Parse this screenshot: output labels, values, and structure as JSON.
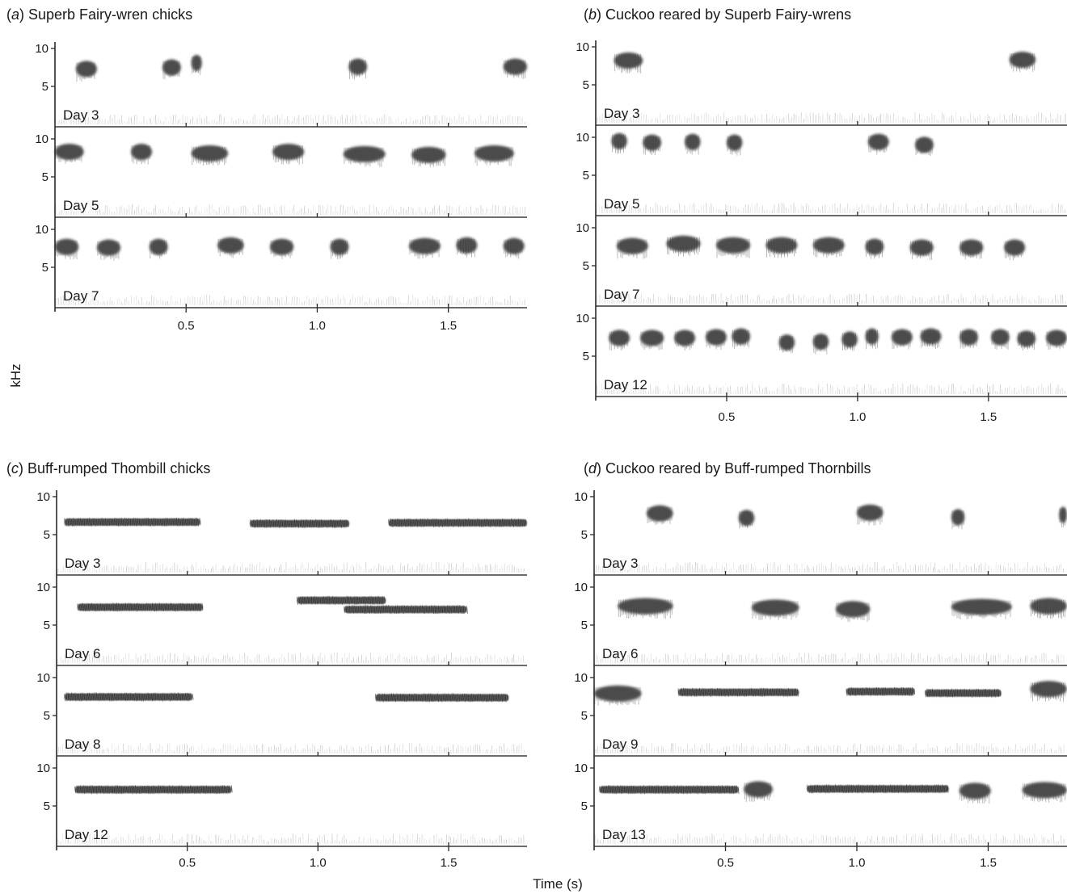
{
  "chart_data": {
    "type": "spectrogram",
    "y_axis_label": "kHz",
    "x_axis_label": "Time (s)",
    "x_ticks": [
      "0.5",
      "1.0",
      "1.5"
    ],
    "y_ticks": [
      "5",
      "10"
    ],
    "panels": [
      {
        "letter": "a",
        "title": "Superb Fairy-wren chicks",
        "xlim": [
          0,
          1.8
        ],
        "rows": [
          {
            "day": "Day 3",
            "calls": [
              [
                0.08,
                0.16,
                7.3
              ],
              [
                0.41,
                0.48,
                7.5
              ],
              [
                0.52,
                0.56,
                8.1
              ],
              [
                1.12,
                1.19,
                7.6
              ],
              [
                1.71,
                1.8,
                7.6
              ]
            ]
          },
          {
            "day": "Day 5",
            "calls": [
              [
                0.0,
                0.11,
                8.3
              ],
              [
                0.29,
                0.37,
                8.3
              ],
              [
                0.52,
                0.66,
                8.1
              ],
              [
                0.83,
                0.95,
                8.3
              ],
              [
                1.1,
                1.26,
                8.0
              ],
              [
                1.36,
                1.49,
                7.9
              ],
              [
                1.6,
                1.75,
                8.1
              ]
            ]
          },
          {
            "day": "Day 7",
            "calls": [
              [
                0.0,
                0.09,
                7.7
              ],
              [
                0.16,
                0.25,
                7.6
              ],
              [
                0.36,
                0.43,
                7.7
              ],
              [
                0.62,
                0.72,
                7.9
              ],
              [
                0.82,
                0.91,
                7.7
              ],
              [
                1.05,
                1.12,
                7.7
              ],
              [
                1.35,
                1.47,
                7.8
              ],
              [
                1.53,
                1.61,
                7.9
              ],
              [
                1.71,
                1.79,
                7.8
              ]
            ]
          }
        ]
      },
      {
        "letter": "b",
        "title": "Cuckoo reared by Superb Fairy-wrens",
        "xlim": [
          0,
          1.8
        ],
        "rows": [
          {
            "day": "Day 3",
            "calls": [
              [
                0.07,
                0.18,
                8.2
              ],
              [
                1.58,
                1.68,
                8.3
              ]
            ]
          },
          {
            "day": "Day 5",
            "calls": [
              [
                0.06,
                0.12,
                9.5
              ],
              [
                0.18,
                0.25,
                9.3
              ],
              [
                0.34,
                0.4,
                9.4
              ],
              [
                0.5,
                0.56,
                9.3
              ],
              [
                1.04,
                1.12,
                9.4
              ],
              [
                1.22,
                1.29,
                9.0
              ]
            ]
          },
          {
            "day": "Day 7",
            "calls": [
              [
                0.08,
                0.2,
                7.6
              ],
              [
                0.27,
                0.4,
                7.9
              ],
              [
                0.46,
                0.59,
                7.7
              ],
              [
                0.65,
                0.77,
                7.7
              ],
              [
                0.83,
                0.95,
                7.7
              ],
              [
                1.03,
                1.1,
                7.5
              ],
              [
                1.2,
                1.29,
                7.4
              ],
              [
                1.39,
                1.48,
                7.4
              ],
              [
                1.56,
                1.64,
                7.4
              ]
            ]
          },
          {
            "day": "Day 12",
            "calls": [
              [
                0.05,
                0.13,
                7.4
              ],
              [
                0.17,
                0.26,
                7.4
              ],
              [
                0.3,
                0.38,
                7.4
              ],
              [
                0.42,
                0.5,
                7.5
              ],
              [
                0.52,
                0.59,
                7.6
              ],
              [
                0.7,
                0.76,
                6.8
              ],
              [
                0.83,
                0.89,
                6.9
              ],
              [
                0.94,
                1.0,
                7.2
              ],
              [
                1.03,
                1.08,
                7.6
              ],
              [
                1.13,
                1.21,
                7.5
              ],
              [
                1.24,
                1.32,
                7.6
              ],
              [
                1.39,
                1.46,
                7.5
              ],
              [
                1.51,
                1.58,
                7.5
              ],
              [
                1.61,
                1.68,
                7.3
              ],
              [
                1.72,
                1.8,
                7.4
              ]
            ]
          }
        ]
      },
      {
        "letter": "c",
        "title": "Buff-rumped Thombill chicks",
        "xlim": [
          0,
          1.8
        ],
        "rows": [
          {
            "day": "Day 3",
            "calls": [
              [
                0.03,
                0.55,
                6.6
              ],
              [
                0.74,
                1.12,
                6.4
              ],
              [
                1.27,
                1.8,
                6.5
              ]
            ]
          },
          {
            "day": "Day 6",
            "calls": [
              [
                0.08,
                0.56,
                7.3
              ],
              [
                0.92,
                1.26,
                8.2
              ],
              [
                1.1,
                1.57,
                7.0
              ]
            ]
          },
          {
            "day": "Day 8",
            "calls": [
              [
                0.03,
                0.52,
                7.4
              ],
              [
                1.22,
                1.73,
                7.3
              ]
            ]
          },
          {
            "day": "Day 12",
            "calls": [
              [
                0.07,
                0.67,
                7.1
              ]
            ]
          }
        ]
      },
      {
        "letter": "d",
        "title": "Cuckoo reared by Buff-rumped Thornbills",
        "xlim": [
          0,
          1.8
        ],
        "rows": [
          {
            "day": "Day 3",
            "calls": [
              [
                0.2,
                0.3,
                7.8
              ],
              [
                0.55,
                0.61,
                7.2
              ],
              [
                1.0,
                1.1,
                7.9
              ],
              [
                1.36,
                1.41,
                7.3
              ],
              [
                1.77,
                1.8,
                7.6
              ]
            ]
          },
          {
            "day": "Day 6",
            "calls": [
              [
                0.09,
                0.3,
                7.5
              ],
              [
                0.6,
                0.78,
                7.3
              ],
              [
                0.92,
                1.05,
                7.1
              ],
              [
                1.36,
                1.59,
                7.4
              ],
              [
                1.66,
                1.8,
                7.5
              ]
            ]
          },
          {
            "day": "Day 9",
            "calls": [
              [
                0.0,
                0.18,
                7.9
              ],
              [
                0.32,
                0.78,
                8.0
              ],
              [
                0.96,
                1.22,
                8.1
              ],
              [
                1.26,
                1.55,
                7.9
              ],
              [
                1.66,
                1.8,
                8.5
              ]
            ]
          },
          {
            "day": "Day 13",
            "calls": [
              [
                0.02,
                0.55,
                7.1
              ],
              [
                0.57,
                0.68,
                7.2
              ],
              [
                0.81,
                1.35,
                7.2
              ],
              [
                1.39,
                1.51,
                7.0
              ],
              [
                1.63,
                1.8,
                7.1
              ]
            ]
          }
        ]
      }
    ]
  }
}
